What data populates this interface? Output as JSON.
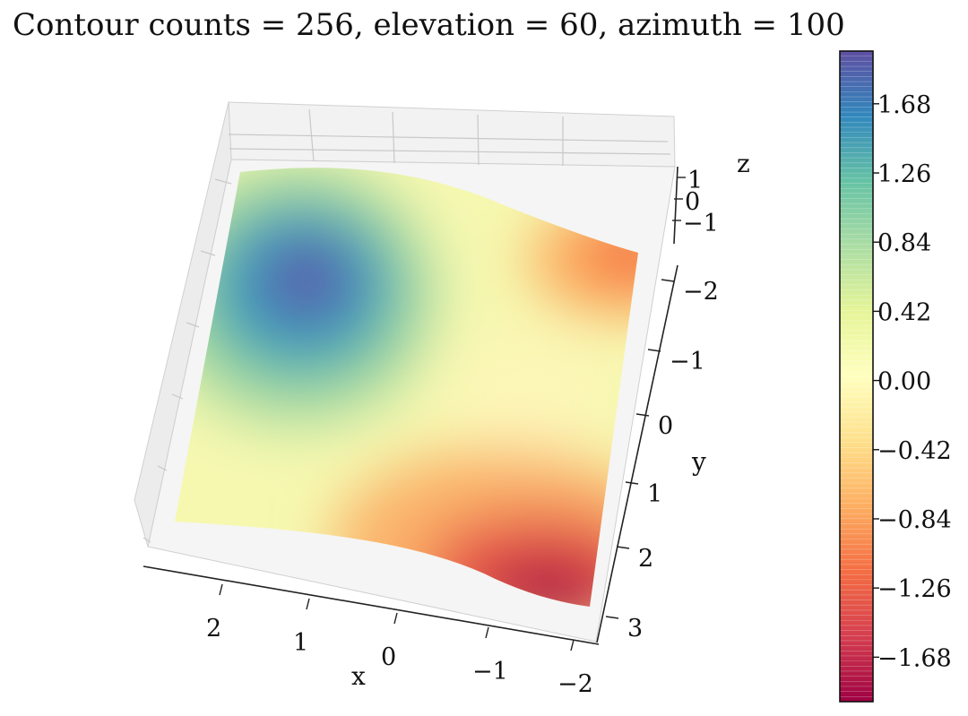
{
  "chart_data": {
    "type": "surface3d",
    "title": "Contour counts = 256, elevation = 60, azimuth = 100",
    "contour_levels": 256,
    "elevation": 60,
    "azimuth": 100,
    "xlabel": "x",
    "ylabel": "y",
    "zlabel": "z",
    "x_ticks": [
      "2",
      "1",
      "0",
      "−1",
      "−2"
    ],
    "y_ticks": [
      "−2",
      "−1",
      "0",
      "1",
      "2",
      "3"
    ],
    "z_ticks": [
      "1",
      "0",
      "−1"
    ],
    "x_range": [
      -2.5,
      2.5
    ],
    "y_range": [
      -2.5,
      3.0
    ],
    "z_range": [
      -2.0,
      2.0
    ],
    "colormap": "Spectral",
    "colorbar": {
      "ticks": [
        "1.68",
        "1.26",
        "0.84",
        "0.42",
        "0.00",
        "−0.42",
        "−0.84",
        "−1.26",
        "−1.68"
      ],
      "range": [
        -1.95,
        2.0
      ]
    },
    "surface_features": [
      {
        "kind": "maximum",
        "x": 1.0,
        "y": -1.5,
        "z": 1.9
      },
      {
        "kind": "minimum",
        "x": -1.8,
        "y": 2.8,
        "z": -1.9
      },
      {
        "kind": "minimum",
        "x": -2.3,
        "y": -2.3,
        "z": -1.2
      }
    ]
  }
}
